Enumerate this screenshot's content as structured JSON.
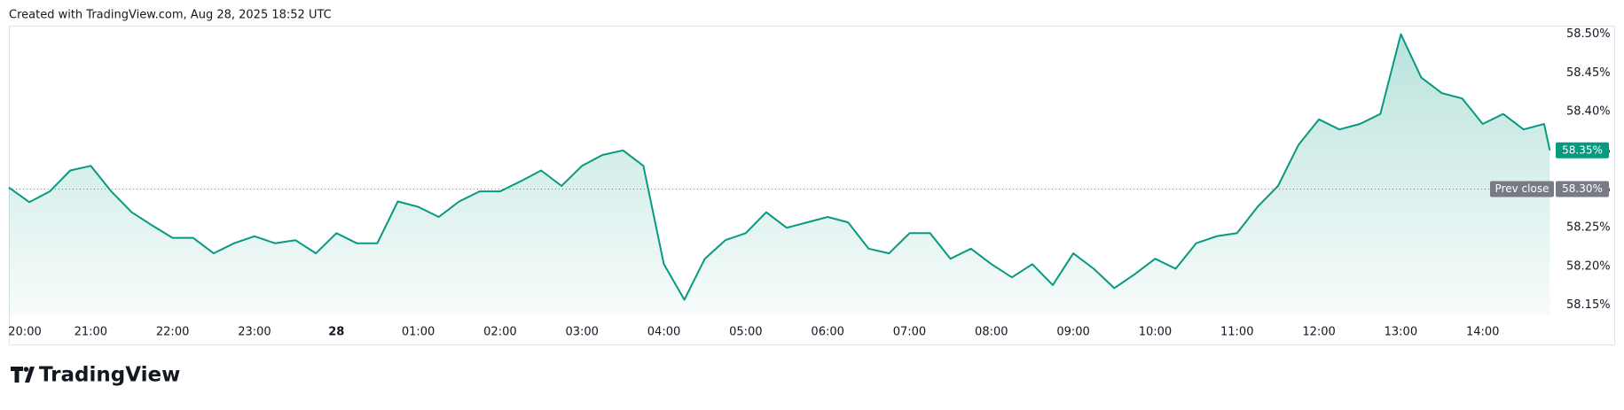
{
  "header": "Created with TradingView.com, Aug 28, 2025 18:52 UTC",
  "brand": "TradingView",
  "chart_data": {
    "type": "area",
    "x": [
      20,
      20.25,
      20.5,
      20.75,
      21,
      21.25,
      21.5,
      21.75,
      22,
      22.25,
      22.5,
      22.75,
      23,
      23.25,
      23.5,
      23.75,
      24,
      24.25,
      24.5,
      24.75,
      25,
      25.25,
      25.5,
      25.75,
      26,
      26.25,
      26.5,
      26.75,
      27,
      27.25,
      27.5,
      27.75,
      28,
      28.25,
      28.5,
      28.75,
      29,
      29.25,
      29.5,
      29.75,
      30,
      30.25,
      30.5,
      30.75,
      31,
      31.25,
      31.5,
      31.75,
      32,
      32.25,
      32.5,
      32.75,
      33,
      33.25,
      33.5,
      33.75,
      34,
      34.25,
      34.5,
      34.75,
      35,
      35.25,
      35.5,
      35.75,
      36,
      36.25,
      36.5,
      36.75,
      37,
      37.25,
      37.5,
      37.75,
      38,
      38.25,
      38.5,
      38.75,
      38.82
    ],
    "values": [
      58.302,
      58.283,
      58.297,
      58.324,
      58.33,
      58.297,
      58.27,
      58.253,
      58.237,
      58.237,
      58.217,
      58.23,
      58.239,
      58.23,
      58.234,
      58.217,
      58.243,
      58.23,
      58.23,
      58.284,
      58.277,
      58.264,
      58.284,
      58.297,
      58.297,
      58.31,
      58.324,
      58.304,
      58.33,
      58.344,
      58.35,
      58.33,
      58.203,
      58.157,
      58.21,
      58.234,
      58.243,
      58.27,
      58.25,
      58.257,
      58.264,
      58.257,
      58.223,
      58.217,
      58.243,
      58.243,
      58.21,
      58.223,
      58.203,
      58.186,
      58.203,
      58.176,
      58.217,
      58.197,
      58.172,
      58.19,
      58.21,
      58.197,
      58.23,
      58.239,
      58.243,
      58.277,
      58.304,
      58.357,
      58.39,
      58.377,
      58.384,
      58.397,
      58.5,
      58.444,
      58.424,
      58.417,
      58.384,
      58.397,
      58.377,
      58.384,
      58.35
    ],
    "color": "#089981",
    "xlim": [
      20,
      38.87
    ],
    "xticks": [
      {
        "value": 20,
        "label": "20:00"
      },
      {
        "value": 21,
        "label": "21:00"
      },
      {
        "value": 22,
        "label": "22:00"
      },
      {
        "value": 23,
        "label": "23:00"
      },
      {
        "value": 24,
        "label": "28"
      },
      {
        "value": 25,
        "label": "01:00"
      },
      {
        "value": 26,
        "label": "02:00"
      },
      {
        "value": 27,
        "label": "03:00"
      },
      {
        "value": 28,
        "label": "04:00"
      },
      {
        "value": 29,
        "label": "05:00"
      },
      {
        "value": 30,
        "label": "06:00"
      },
      {
        "value": 31,
        "label": "07:00"
      },
      {
        "value": 32,
        "label": "08:00"
      },
      {
        "value": 33,
        "label": "09:00"
      },
      {
        "value": 34,
        "label": "10:00"
      },
      {
        "value": 35,
        "label": "11:00"
      },
      {
        "value": 36,
        "label": "12:00"
      },
      {
        "value": 37,
        "label": "13:00"
      },
      {
        "value": 38,
        "label": "14:00"
      }
    ],
    "ylim": [
      58.137,
      58.511
    ],
    "yticks": [
      {
        "value": 58.15,
        "label": "58.15%"
      },
      {
        "value": 58.2,
        "label": "58.20%"
      },
      {
        "value": 58.25,
        "label": "58.25%"
      },
      {
        "value": 58.3,
        "label": "58.30%"
      },
      {
        "value": 58.35,
        "label": "58.35%"
      },
      {
        "value": 58.4,
        "label": "58.40%"
      },
      {
        "value": 58.45,
        "label": "58.45%"
      },
      {
        "value": 58.5,
        "label": "58.50%"
      }
    ],
    "last_price": {
      "value": 58.35,
      "label": "58.35%",
      "color": "#089981"
    },
    "prev_close": {
      "name": "Prev close",
      "value": 58.3,
      "label": "58.30%",
      "color": "#787b86"
    }
  }
}
